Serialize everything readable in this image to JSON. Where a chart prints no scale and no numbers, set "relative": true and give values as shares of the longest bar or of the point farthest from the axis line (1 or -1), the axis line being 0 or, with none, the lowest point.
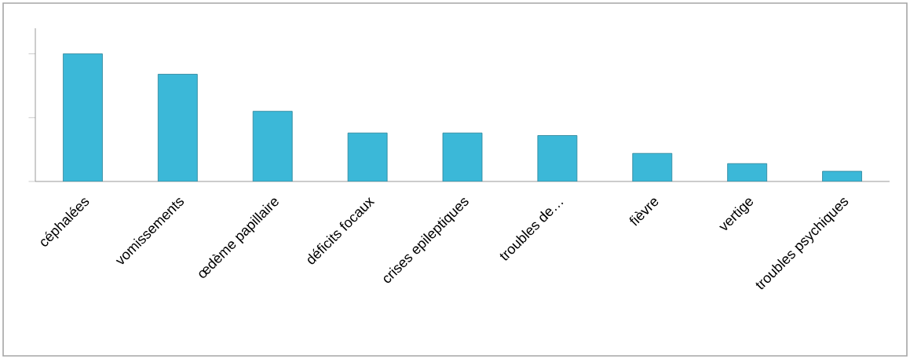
{
  "chart_data": {
    "type": "bar",
    "relative": true,
    "categories": [
      "céphalées",
      "vomissements",
      "œdème papillaire",
      "déficits focaux",
      "crises epileptiques",
      "troubles de…",
      "fièvre",
      "vertige",
      "troubles psychiques"
    ],
    "values": [
      1,
      0.84,
      0.55,
      0.38,
      0.38,
      0.36,
      0.22,
      0.14,
      0.08
    ],
    "color": "#3bb8d8"
  }
}
